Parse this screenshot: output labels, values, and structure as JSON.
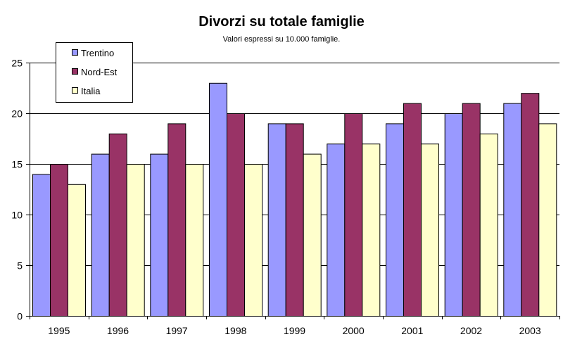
{
  "chart_data": {
    "type": "bar",
    "title": "Divorzi su totale famiglie",
    "subtitle": "Valori espressi su 10.000 famiglie.",
    "xlabel": "",
    "ylabel": "",
    "categories": [
      "1995",
      "1996",
      "1997",
      "1998",
      "1999",
      "2000",
      "2001",
      "2002",
      "2003"
    ],
    "series": [
      {
        "name": "Trentino",
        "color": "#9999ff",
        "values": [
          14,
          16,
          16,
          23,
          19,
          17,
          19,
          20,
          21
        ]
      },
      {
        "name": "Nord-Est",
        "color": "#993366",
        "values": [
          15,
          18,
          19,
          20,
          19,
          20,
          21,
          21,
          22
        ]
      },
      {
        "name": "Italia",
        "color": "#ffffcc",
        "values": [
          13,
          15,
          15,
          15,
          16,
          17,
          17,
          18,
          19
        ]
      }
    ],
    "ylim": [
      0,
      25
    ],
    "yticks": [
      0,
      5,
      10,
      15,
      20,
      25
    ],
    "grid": "horizontal",
    "legend_position": "top-left"
  }
}
